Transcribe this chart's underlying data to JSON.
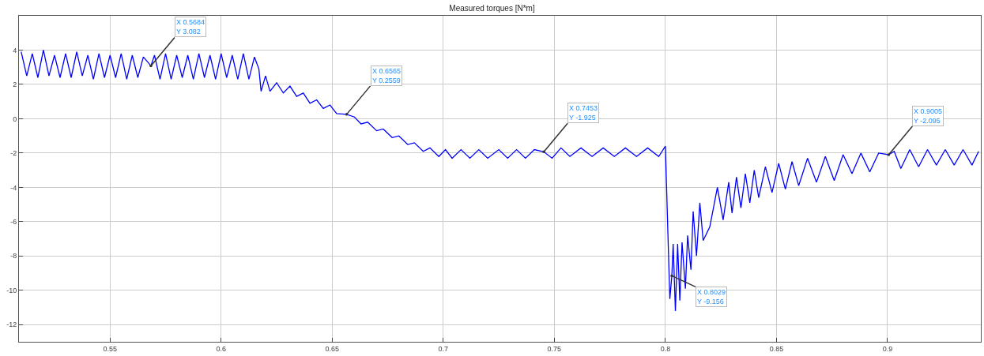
{
  "chart_data": {
    "type": "line",
    "title": "Measured torques [N*m]",
    "x": [
      0.51,
      0.5125,
      0.515,
      0.5175,
      0.52,
      0.5225,
      0.525,
      0.5275,
      0.53,
      0.5325,
      0.535,
      0.5375,
      0.54,
      0.5425,
      0.545,
      0.5475,
      0.55,
      0.5525,
      0.555,
      0.5575,
      0.56,
      0.5625,
      0.565,
      0.5684,
      0.57,
      0.5725,
      0.575,
      0.5775,
      0.58,
      0.5825,
      0.585,
      0.5875,
      0.59,
      0.5925,
      0.595,
      0.5975,
      0.6,
      0.6025,
      0.605,
      0.6075,
      0.61,
      0.6125,
      0.615,
      0.617,
      0.618,
      0.62,
      0.622,
      0.625,
      0.628,
      0.631,
      0.634,
      0.637,
      0.64,
      0.643,
      0.646,
      0.649,
      0.652,
      0.6565,
      0.66,
      0.663,
      0.666,
      0.67,
      0.673,
      0.677,
      0.68,
      0.684,
      0.687,
      0.691,
      0.694,
      0.698,
      0.701,
      0.704,
      0.708,
      0.712,
      0.716,
      0.72,
      0.725,
      0.729,
      0.733,
      0.737,
      0.741,
      0.7453,
      0.749,
      0.753,
      0.757,
      0.762,
      0.767,
      0.772,
      0.777,
      0.782,
      0.787,
      0.792,
      0.797,
      0.8,
      0.8012,
      0.802,
      0.8029,
      0.8035,
      0.8045,
      0.8055,
      0.8065,
      0.8075,
      0.809,
      0.81,
      0.8115,
      0.8125,
      0.814,
      0.8155,
      0.817,
      0.82,
      0.8234,
      0.826,
      0.8285,
      0.83,
      0.832,
      0.834,
      0.836,
      0.838,
      0.84,
      0.842,
      0.845,
      0.848,
      0.851,
      0.854,
      0.857,
      0.86,
      0.864,
      0.868,
      0.872,
      0.876,
      0.88,
      0.884,
      0.888,
      0.892,
      0.896,
      0.9005,
      0.903,
      0.906,
      0.91,
      0.914,
      0.918,
      0.922,
      0.926,
      0.93,
      0.934,
      0.938,
      0.941
    ],
    "series": [
      {
        "color": "#0000ff",
        "values": [
          3.9,
          2.5,
          3.8,
          2.4,
          4.0,
          2.5,
          3.7,
          2.4,
          3.8,
          2.4,
          3.9,
          2.5,
          3.7,
          2.3,
          3.8,
          2.4,
          3.7,
          2.4,
          3.8,
          2.3,
          3.7,
          2.4,
          3.6,
          3.082,
          3.7,
          2.3,
          3.8,
          2.3,
          3.7,
          2.4,
          3.7,
          2.3,
          3.8,
          2.4,
          3.7,
          2.3,
          3.8,
          2.4,
          3.7,
          2.3,
          3.8,
          2.3,
          3.6,
          2.9,
          1.6,
          2.5,
          1.6,
          2.1,
          1.5,
          1.9,
          1.3,
          1.5,
          0.9,
          1.1,
          0.6,
          0.8,
          0.3,
          0.2559,
          0.1,
          -0.3,
          -0.2,
          -0.7,
          -0.6,
          -1.1,
          -1.0,
          -1.5,
          -1.4,
          -1.9,
          -1.7,
          -2.2,
          -1.8,
          -2.3,
          -1.8,
          -2.3,
          -1.8,
          -2.3,
          -1.8,
          -2.3,
          -1.8,
          -2.3,
          -1.8,
          -1.925,
          -2.3,
          -1.7,
          -2.2,
          -1.7,
          -2.2,
          -1.7,
          -2.2,
          -1.7,
          -2.2,
          -1.7,
          -2.2,
          -1.6,
          -7.0,
          -10.5,
          -9.156,
          -7.3,
          -11.2,
          -7.3,
          -10.6,
          -7.2,
          -9.9,
          -6.8,
          -8.8,
          -5.4,
          -8.0,
          -4.9,
          -7.1,
          -6.3,
          -4.0,
          -5.9,
          -3.7,
          -5.5,
          -3.4,
          -5.2,
          -3.2,
          -4.9,
          -3.0,
          -4.6,
          -2.8,
          -4.3,
          -2.6,
          -4.1,
          -2.5,
          -3.9,
          -2.3,
          -3.7,
          -2.2,
          -3.6,
          -2.1,
          -3.2,
          -2.0,
          -3.1,
          -2.0,
          -2.095,
          -1.9,
          -2.9,
          -1.8,
          -2.8,
          -1.8,
          -2.7,
          -1.8,
          -2.7,
          -1.8,
          -2.7,
          -1.9
        ]
      }
    ],
    "xlim": [
      0.509,
      0.942
    ],
    "ylim": [
      -13,
      6
    ],
    "xticks": [
      0.55,
      0.6,
      0.65,
      0.7,
      0.75,
      0.8,
      0.85,
      0.9
    ],
    "yticks": [
      -12,
      -10,
      -8,
      -6,
      -4,
      -2,
      0,
      2,
      4
    ],
    "annotations": [
      {
        "text": "X 0.5684\nY 3.082",
        "x": 0.5684,
        "y": 3.082
      },
      {
        "text": "X 0.6565\nY 0.2559",
        "x": 0.6565,
        "y": 0.2559
      },
      {
        "text": "X 0.7453\nY -1.925",
        "x": 0.7453,
        "y": -1.925
      },
      {
        "text": "X 0.8029\nY -9.156",
        "x": 0.8029,
        "y": -9.156
      },
      {
        "text": "X 0.9005\nY -2.095",
        "x": 0.9005,
        "y": -2.095
      }
    ],
    "grid": true,
    "marker": "none",
    "line_style": "solid"
  }
}
